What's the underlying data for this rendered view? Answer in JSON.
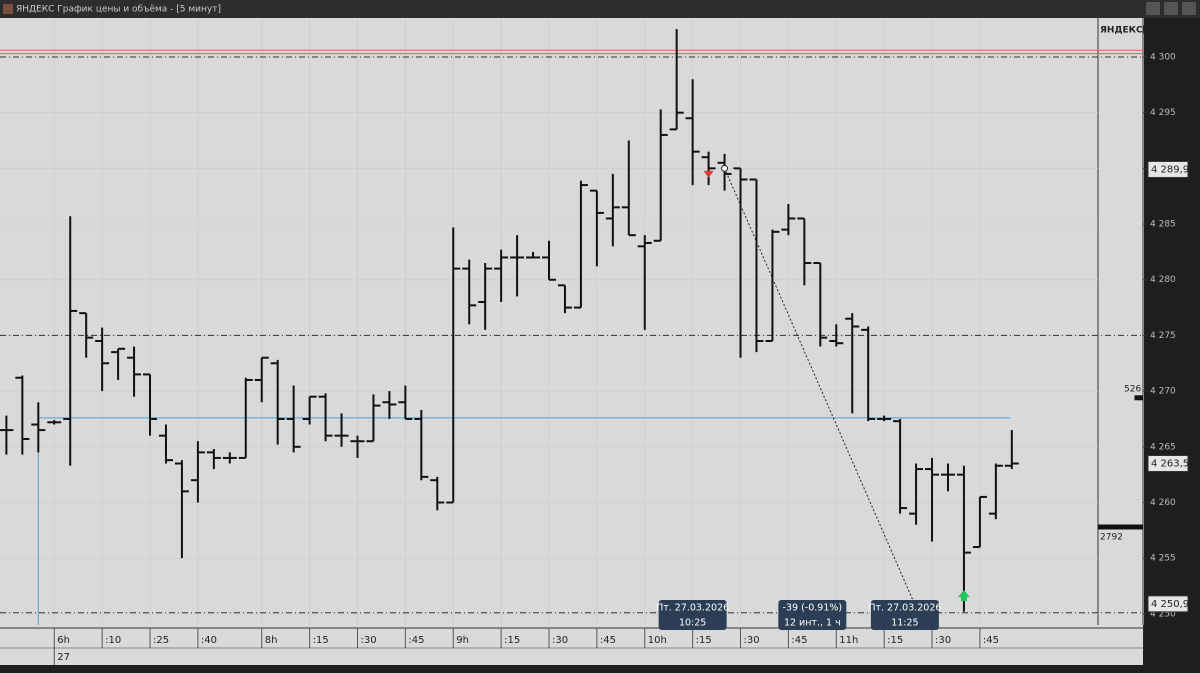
{
  "window": {
    "title": "ЯНДЕКС График цены и объёма - [5 минут]",
    "axis_header": "ЯНДЕКС[I"
  },
  "chart_data": {
    "type": "ohlc",
    "open": [
      4266.5,
      4271.2,
      4267,
      4267.2,
      4267.5,
      4277,
      4274.5,
      4273.5,
      4273,
      4271.5,
      4266,
      4263.5,
      4262,
      4264.5,
      4264,
      4264,
      4271,
      4272.5,
      4267.5,
      4267.5,
      4269.5,
      4266,
      4265.5,
      4265.5,
      4269,
      4269,
      4267.5,
      4262,
      4260,
      4281,
      4278,
      4281,
      4282,
      4282,
      4282,
      4279.5,
      4277.5,
      4288,
      4285.5,
      4286.5,
      4283,
      4283.5,
      4293.5,
      4294.5,
      4291,
      4290.5,
      4290,
      4289,
      4274.5,
      4284.5,
      4285.5,
      4281.5,
      4274.5,
      4276.5,
      4275.5,
      4267.5,
      4267.3,
      4259,
      4263,
      4262.5,
      4262.5,
      4256,
      4259,
      4263.3
    ],
    "high": [
      4267.8,
      4271.4,
      4269,
      4267.4,
      4285.7,
      4277,
      4275.7,
      4273.8,
      4274,
      4271.5,
      4267,
      4263.8,
      4265.5,
      4264.8,
      4264.5,
      4271.2,
      4273,
      4272.8,
      4270.5,
      4269.5,
      4269.8,
      4268,
      4266,
      4269.7,
      4270,
      4270.5,
      4268.3,
      4262.3,
      4284.7,
      4281.8,
      4281.5,
      4282.7,
      4284,
      4282.5,
      4283.5,
      4279.5,
      4288.9,
      4288,
      4289.5,
      4292.5,
      4284,
      4295.3,
      4302.5,
      4298,
      4291.5,
      4291.3,
      4290,
      4289,
      4284.5,
      4286.8,
      4285.5,
      4281.5,
      4276,
      4277,
      4275.8,
      4267.8,
      4267.5,
      4263.5,
      4264,
      4263.5,
      4263.3,
      4260.5,
      4263.5,
      4266.5
    ],
    "low": [
      4264.3,
      4264.3,
      4264.5,
      4267,
      4263.3,
      4273,
      4270,
      4271,
      4269.5,
      4266,
      4263.5,
      4255,
      4260,
      4263,
      4263.5,
      4264,
      4269,
      4265.2,
      4264.5,
      4267,
      4265.5,
      4265,
      4264,
      4265.5,
      4267.5,
      4267.5,
      4262,
      4259.3,
      4260,
      4276,
      4275.5,
      4278,
      4278.5,
      4282,
      4280,
      4277,
      4277.5,
      4281.2,
      4283,
      4284,
      4275.5,
      4283.5,
      4293.5,
      4288.5,
      4288.5,
      4288,
      4273,
      4273.5,
      4274.5,
      4284,
      4279.5,
      4274,
      4274,
      4268,
      4267.3,
      4267.3,
      4259,
      4258,
      4256.5,
      4261,
      4250.2,
      4256,
      4258.5,
      4263
    ],
    "close": [
      4266.5,
      4265.7,
      4266.5,
      4267.2,
      4277.2,
      4274.8,
      4272.5,
      4273.8,
      4271.5,
      4267.5,
      4263.8,
      4261,
      4264.5,
      4264,
      4264,
      4271,
      4273,
      4267.5,
      4265,
      4269.5,
      4266,
      4266,
      4265.5,
      4268.7,
      4268.8,
      4267.5,
      4262.3,
      4260,
      4281,
      4277.7,
      4281,
      4282,
      4282,
      4282,
      4280,
      4277.5,
      4288.5,
      4286,
      4286.5,
      4284,
      4283.3,
      4293,
      4295,
      4291.5,
      4290,
      4289.5,
      4289,
      4274.5,
      4284.3,
      4285.5,
      4281.5,
      4274.8,
      4274.3,
      4275.8,
      4267.5,
      4267.5,
      4259.5,
      4263,
      4262.5,
      4262.5,
      4255.5,
      4260.5,
      4263.3,
      4263.5
    ],
    "ylim": [
      4249,
      4303.5
    ],
    "yticks": [
      {
        "value": 4250,
        "label": "4 250"
      },
      {
        "value": 4255,
        "label": "4 255"
      },
      {
        "value": 4260,
        "label": "4 260"
      },
      {
        "value": 4265,
        "label": "4 265"
      },
      {
        "value": 4270,
        "label": "4 270"
      },
      {
        "value": 4275,
        "label": "4 275"
      },
      {
        "value": 4280,
        "label": "4 280"
      },
      {
        "value": 4285,
        "label": "4 285"
      },
      {
        "value": 4290,
        "label": "4 290"
      },
      {
        "value": 4295,
        "label": "4 295"
      },
      {
        "value": 4300,
        "label": "4 300"
      }
    ],
    "xlim": [
      -0.4,
      68.4
    ],
    "xticks": [
      {
        "value": 3,
        "label": "6h"
      },
      {
        "value": 6,
        "label": ":10"
      },
      {
        "value": 9,
        "label": ":25"
      },
      {
        "value": 12,
        "label": ":40"
      },
      {
        "value": 16,
        "label": "8h"
      },
      {
        "value": 19,
        "label": ":15"
      },
      {
        "value": 22,
        "label": ":30"
      },
      {
        "value": 25,
        "label": ":45"
      },
      {
        "value": 28,
        "label": "9h"
      },
      {
        "value": 31,
        "label": ":15"
      },
      {
        "value": 34,
        "label": ":30"
      },
      {
        "value": 37,
        "label": ":45"
      },
      {
        "value": 40,
        "label": "10h"
      },
      {
        "value": 43,
        "label": ":15"
      },
      {
        "value": 46,
        "label": ":30"
      },
      {
        "value": 49,
        "label": ":45"
      },
      {
        "value": 52,
        "label": "11h"
      },
      {
        "value": 55,
        "label": ":15"
      },
      {
        "value": 58,
        "label": ":30"
      },
      {
        "value": 61,
        "label": ":45"
      }
    ],
    "date_ticks": [
      {
        "value": 3,
        "label": "27"
      }
    ],
    "red_levels": [
      4300.6,
      4300.3
    ],
    "dash_levels": [
      4300,
      4275,
      4250.1
    ],
    "blue_level": {
      "value": 4267.6,
      "start": 2
    },
    "trend_line": {
      "x": [
        45,
        56.9
      ],
      "y": [
        4290,
        4250.9
      ]
    },
    "signals": {
      "sell": {
        "x": 44,
        "y": 4289.5
      },
      "buy": {
        "x": 60,
        "y": 4251.5
      }
    },
    "price_labels": [
      {
        "value": 4289.9,
        "label": "4 289,9"
      },
      {
        "value": 4263.5,
        "label": "4 263,5"
      },
      {
        "value": 4250.9,
        "label": "4 250,9"
      }
    ],
    "volume_markers": [
      {
        "value": 526,
        "level": 4269.4
      },
      {
        "value": 2792,
        "level": 4257.8
      }
    ],
    "tooltips": [
      {
        "x": 43,
        "lines": [
          "Пт. 27.03.2026",
          "10:25"
        ]
      },
      {
        "x": 50.5,
        "lines": [
          "-39 (-0.91%)",
          "12 инт., 1 ч"
        ]
      },
      {
        "x": 56.3,
        "lines": [
          "Пт. 27.03.2026",
          "11:25"
        ]
      }
    ]
  }
}
